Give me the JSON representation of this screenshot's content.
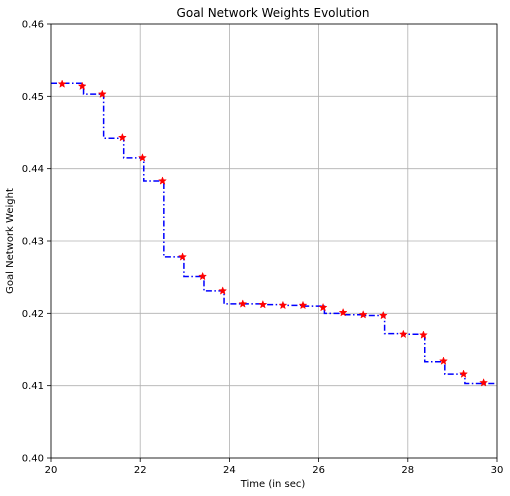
{
  "chart_data": {
    "type": "line",
    "title": "Goal Network Weights Evolution",
    "xlabel": "Time (in sec)",
    "ylabel": "Goal Network Weight",
    "xlim": [
      20,
      30
    ],
    "ylim": [
      0.4,
      0.46
    ],
    "xticks": [
      20,
      22,
      24,
      26,
      28,
      30
    ],
    "yticks": [
      0.4,
      0.41,
      0.42,
      0.43,
      0.44,
      0.45,
      0.46
    ],
    "xtick_labels": [
      "20",
      "22",
      "24",
      "26",
      "28",
      "30"
    ],
    "ytick_labels": [
      "0.40",
      "0.41",
      "0.42",
      "0.43",
      "0.44",
      "0.45",
      "0.46"
    ],
    "grid": true,
    "series": [
      {
        "line_color": "#0000ff",
        "line_style": "dash-dot",
        "marker": "star",
        "marker_color": "#ff0000",
        "step": "post",
        "x_start": 20.0,
        "x_end": 30.0,
        "steps": [
          {
            "x": 20.0,
            "y": 0.4518
          },
          {
            "x": 20.73,
            "y": 0.4503
          },
          {
            "x": 21.18,
            "y": 0.4442
          },
          {
            "x": 21.63,
            "y": 0.4415
          },
          {
            "x": 22.08,
            "y": 0.4383
          },
          {
            "x": 22.53,
            "y": 0.4278
          },
          {
            "x": 22.98,
            "y": 0.4251
          },
          {
            "x": 23.43,
            "y": 0.4231
          },
          {
            "x": 23.88,
            "y": 0.4213
          },
          {
            "x": 24.33,
            "y": 0.4213
          },
          {
            "x": 24.78,
            "y": 0.4212
          },
          {
            "x": 25.23,
            "y": 0.4211
          },
          {
            "x": 25.68,
            "y": 0.421
          },
          {
            "x": 26.13,
            "y": 0.42
          },
          {
            "x": 26.58,
            "y": 0.4198
          },
          {
            "x": 27.03,
            "y": 0.4197
          },
          {
            "x": 27.48,
            "y": 0.4172
          },
          {
            "x": 27.93,
            "y": 0.4171
          },
          {
            "x": 28.38,
            "y": 0.4133
          },
          {
            "x": 28.83,
            "y": 0.4116
          },
          {
            "x": 29.28,
            "y": 0.4103
          }
        ],
        "markers": [
          {
            "x": 20.25,
            "y": 0.4517
          },
          {
            "x": 20.7,
            "y": 0.4514
          },
          {
            "x": 21.15,
            "y": 0.4503
          },
          {
            "x": 21.6,
            "y": 0.4443
          },
          {
            "x": 22.05,
            "y": 0.4415
          },
          {
            "x": 22.5,
            "y": 0.4383
          },
          {
            "x": 22.95,
            "y": 0.4278
          },
          {
            "x": 23.4,
            "y": 0.4251
          },
          {
            "x": 23.85,
            "y": 0.4231
          },
          {
            "x": 24.3,
            "y": 0.4213
          },
          {
            "x": 24.75,
            "y": 0.4212
          },
          {
            "x": 25.2,
            "y": 0.4211
          },
          {
            "x": 25.65,
            "y": 0.4211
          },
          {
            "x": 26.1,
            "y": 0.4208
          },
          {
            "x": 26.55,
            "y": 0.4201
          },
          {
            "x": 27.0,
            "y": 0.4198
          },
          {
            "x": 27.45,
            "y": 0.4197
          },
          {
            "x": 27.9,
            "y": 0.4171
          },
          {
            "x": 28.35,
            "y": 0.417
          },
          {
            "x": 28.8,
            "y": 0.4134
          },
          {
            "x": 29.25,
            "y": 0.4116
          },
          {
            "x": 29.7,
            "y": 0.4104
          }
        ]
      }
    ]
  }
}
